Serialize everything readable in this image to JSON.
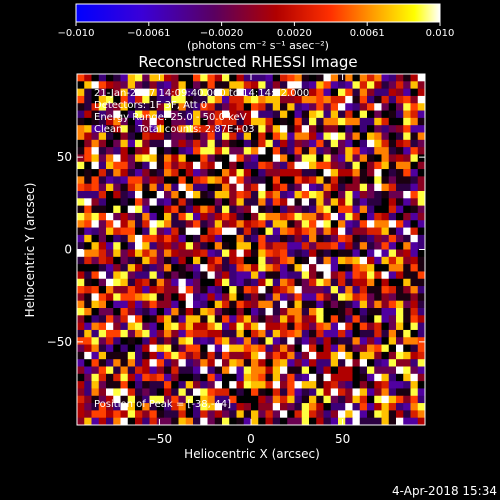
{
  "chart_data": {
    "type": "heatmap",
    "title": "Reconstructed RHESSI Image",
    "xlabel": "Heliocentric X (arcsec)",
    "ylabel": "Heliocentric Y (arcsec)",
    "xlim": [
      -95,
      95
    ],
    "ylim": [
      -95,
      95
    ],
    "xticks": [
      -50,
      0,
      50
    ],
    "yticks": [
      -50,
      0,
      50
    ],
    "colorbar": {
      "ticks": [
        "−0.010",
        "−0.0061",
        "−0.0020",
        "0.0020",
        "0.0061",
        "0.010"
      ],
      "range": [
        -0.01,
        0.01
      ],
      "units_label": "(photons cm⁻² s⁻¹ asec⁻²)",
      "colors": [
        "#0000ff",
        "#5b00b4",
        "#8a0066",
        "#d00000",
        "#ff8000",
        "#ffff00",
        "#ffffff"
      ]
    },
    "annotations": [
      "21-Jan-2017 14:09:40.000 to 14:14:52.000",
      "Detectors: 1F 3F, Att 0",
      "Energy Range: 25.0 - 50.0 keV",
      "Clean     Total counts: 2.87E+03"
    ],
    "peak_label": "Position of Peak = [-38,-44]",
    "grid": false,
    "pixel_grid": {
      "nx": 48,
      "ny": 48
    }
  },
  "footer_date": "4-Apr-2018 15:34",
  "palette": {
    "background": "#000000",
    "foreground": "#ffffff"
  }
}
